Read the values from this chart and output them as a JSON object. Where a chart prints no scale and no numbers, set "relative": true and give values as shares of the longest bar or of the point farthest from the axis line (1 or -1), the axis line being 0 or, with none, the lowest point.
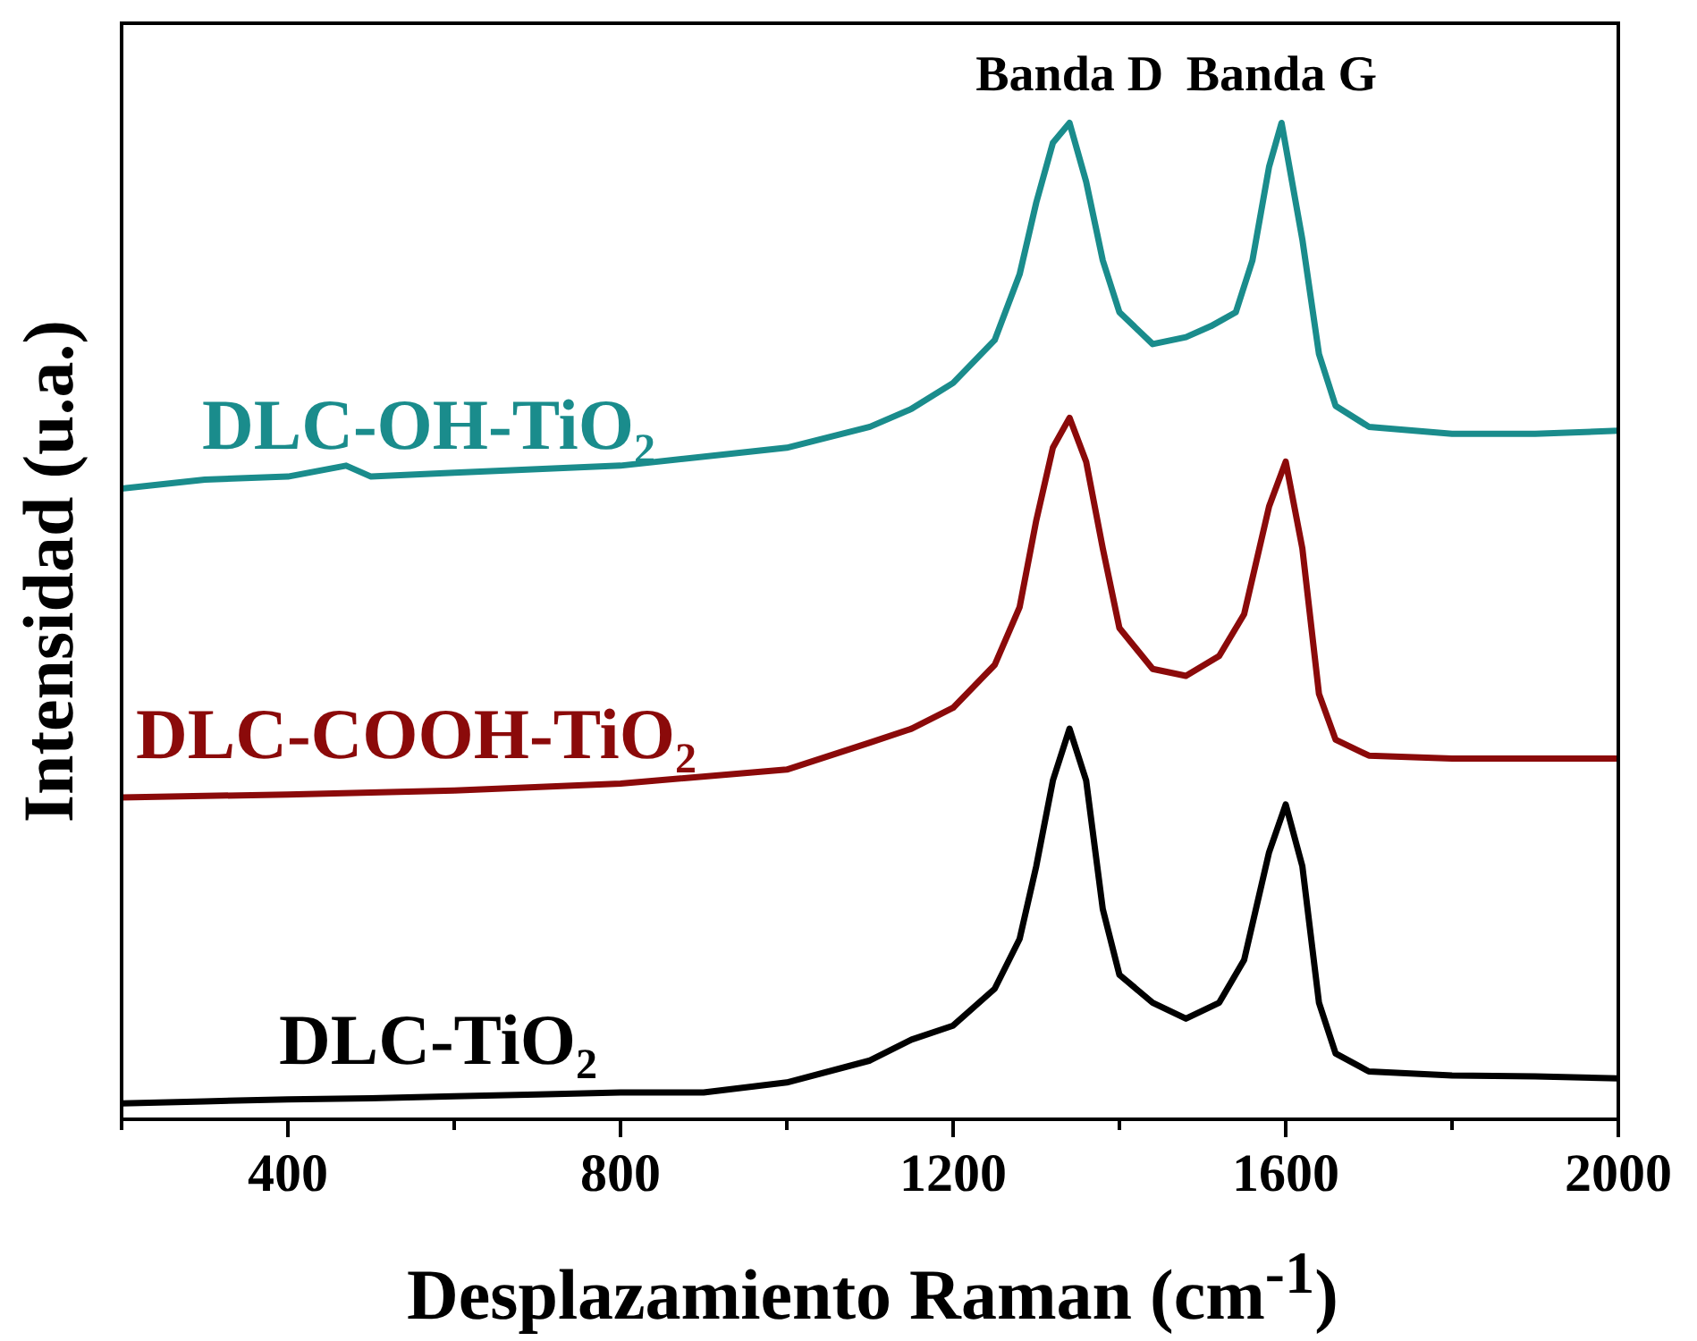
{
  "chart_data": {
    "type": "line",
    "relative": true,
    "xlabel": "Desplazamiento Raman (cm$^{-1}$)",
    "ylabel": "Intensidad (u.a.)",
    "xlim": [
      200,
      2000
    ],
    "xticks": [
      {
        "value": 200,
        "label": null
      },
      400,
      {
        "value": 600,
        "label": null
      },
      800,
      {
        "value": 1000,
        "label": null
      },
      1200,
      {
        "value": 1400,
        "label": null
      },
      1600,
      {
        "value": 1800,
        "label": null
      },
      2000
    ],
    "grid": false,
    "legend": false,
    "marker": "none",
    "line_style": "solid",
    "annotations": [
      {
        "text": "Banda D",
        "x": 1340,
        "y": 1
      },
      {
        "text": "Banda G",
        "x": 1595,
        "y": 1
      }
    ],
    "series": [
      {
        "name": "DLC-OH-TiO₂",
        "color": "#1a8c8c",
        "x": [
          200,
          300,
          400,
          470,
          500,
          600,
          800,
          1000,
          1100,
          1150,
          1200,
          1250,
          1280,
          1300,
          1320,
          1340,
          1360,
          1380,
          1400,
          1440,
          1480,
          1510,
          1540,
          1560,
          1580,
          1595,
          1620,
          1640,
          1660,
          1700,
          1800,
          1900,
          2000
        ],
        "values": [
          0.633,
          0.642,
          0.645,
          0.656,
          0.645,
          0.649,
          0.656,
          0.674,
          0.695,
          0.713,
          0.739,
          0.782,
          0.848,
          0.92,
          0.98,
          1,
          0.941,
          0.862,
          0.81,
          0.778,
          0.785,
          0.796,
          0.81,
          0.862,
          0.956,
          1,
          0.883,
          0.768,
          0.716,
          0.695,
          0.688,
          0.688,
          0.691
        ]
      },
      {
        "name": "DLC-COOH-TiO₂",
        "color": "#8b0a0a",
        "x": [
          200,
          400,
          600,
          800,
          1000,
          1100,
          1150,
          1200,
          1250,
          1280,
          1300,
          1320,
          1340,
          1360,
          1380,
          1400,
          1440,
          1480,
          1520,
          1550,
          1580,
          1600,
          1620,
          1640,
          1660,
          1700,
          1800,
          2000
        ],
        "values": [
          0.323,
          0.326,
          0.33,
          0.337,
          0.351,
          0.378,
          0.392,
          0.413,
          0.456,
          0.514,
          0.601,
          0.674,
          0.704,
          0.66,
          0.573,
          0.493,
          0.452,
          0.445,
          0.465,
          0.507,
          0.615,
          0.66,
          0.573,
          0.427,
          0.381,
          0.365,
          0.362,
          0.362
        ]
      },
      {
        "name": "DLC-TiO₂",
        "color": "#000000",
        "x": [
          200,
          300,
          400,
          500,
          600,
          700,
          800,
          900,
          1000,
          1100,
          1150,
          1200,
          1250,
          1280,
          1300,
          1320,
          1340,
          1360,
          1380,
          1400,
          1440,
          1480,
          1520,
          1550,
          1580,
          1600,
          1620,
          1640,
          1660,
          1700,
          1800,
          1900,
          2000
        ],
        "values": [
          0.016,
          0.018,
          0.02,
          0.021,
          0.023,
          0.025,
          0.027,
          0.027,
          0.037,
          0.059,
          0.08,
          0.094,
          0.131,
          0.181,
          0.254,
          0.34,
          0.392,
          0.34,
          0.211,
          0.145,
          0.117,
          0.101,
          0.117,
          0.16,
          0.268,
          0.316,
          0.254,
          0.117,
          0.066,
          0.048,
          0.044,
          0.043,
          0.041
        ]
      }
    ]
  }
}
